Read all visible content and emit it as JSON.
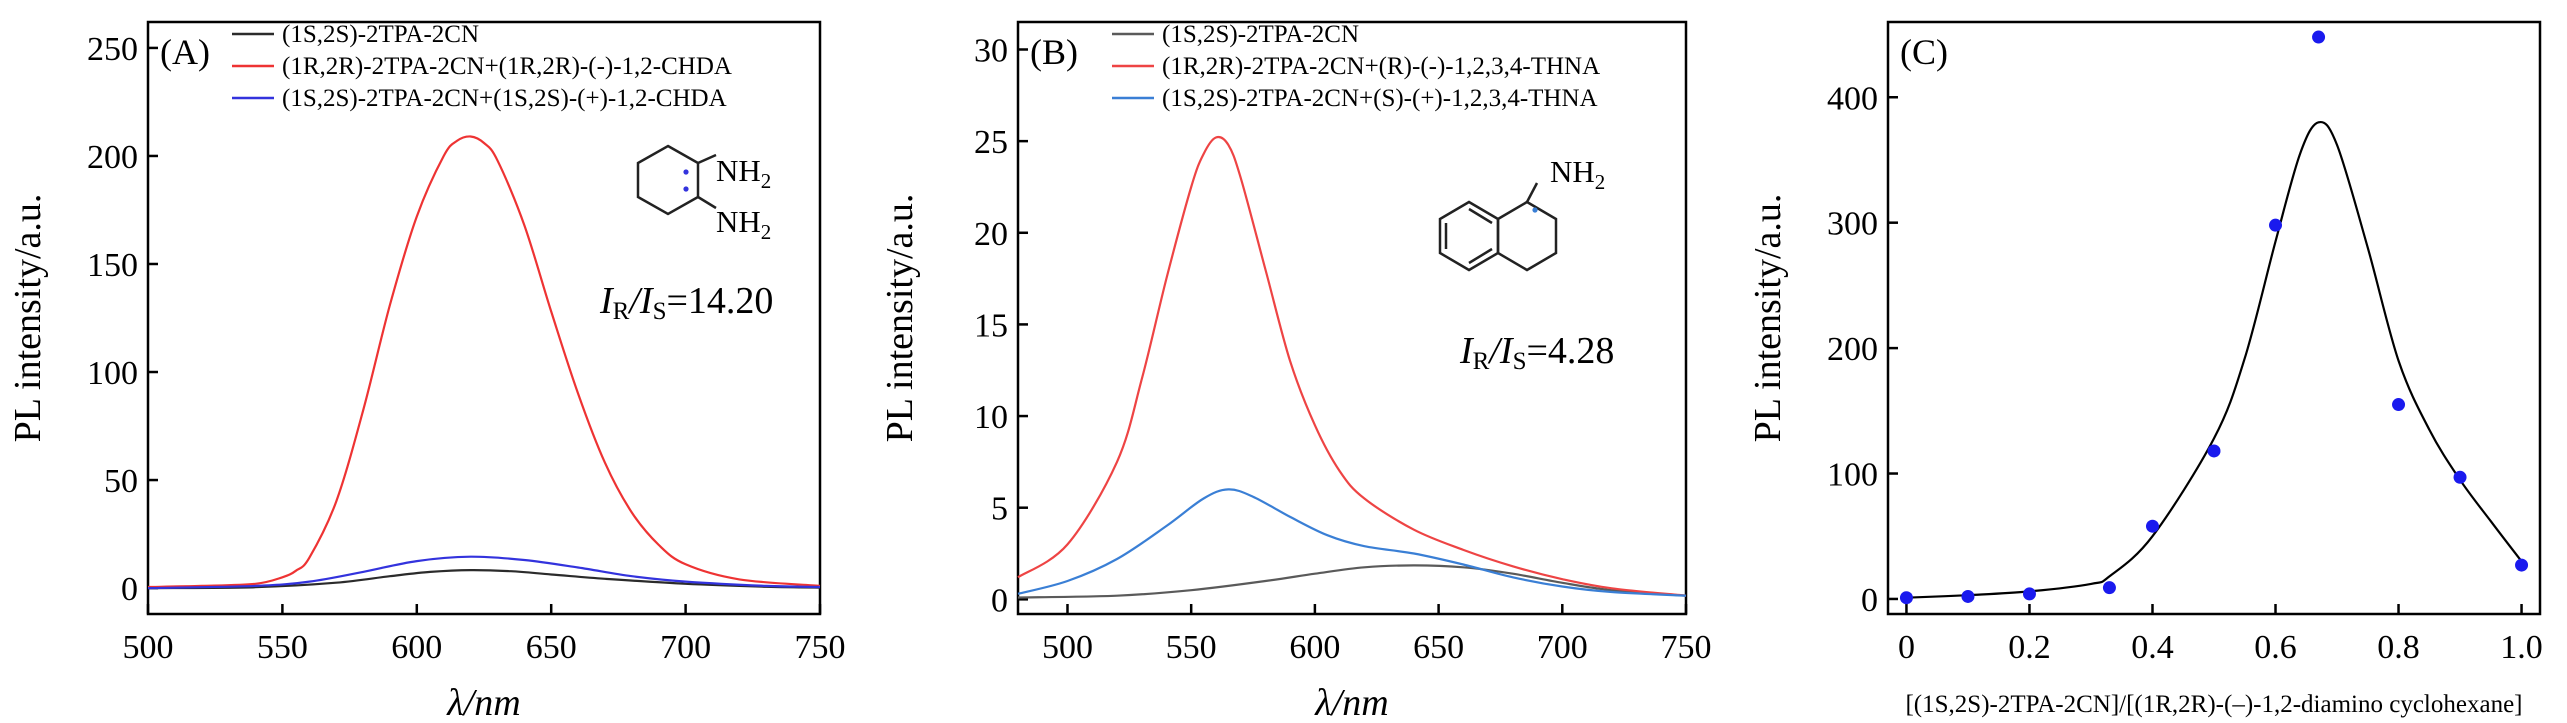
{
  "chart_data": [
    {
      "type": "line",
      "panel": "(A)",
      "xlabel": "λ/nm",
      "ylabel": "PL intensity/a.u.",
      "xlim": [
        500,
        750
      ],
      "ylim": [
        -12,
        262
      ],
      "xticks": [
        500,
        550,
        600,
        650,
        700,
        750
      ],
      "yticks": [
        0,
        50,
        100,
        150,
        200,
        250
      ],
      "legend_position": "top-left",
      "series": [
        {
          "name": "(1S,2S)-2TPA-2CN",
          "color": "#2b2b2b",
          "x": [
            500,
            540,
            570,
            590,
            605,
            620,
            635,
            650,
            670,
            700,
            730,
            750
          ],
          "y": [
            0,
            0.4,
            2.5,
            5.5,
            7.5,
            8.3,
            7.8,
            6.3,
            4.3,
            2,
            0.6,
            0.2
          ]
        },
        {
          "name": "(1R,2R)-2TPA-2CN+(1R,2R)-(-)-1,2-CHDA",
          "color": "#ee3333",
          "x": [
            500,
            520,
            540,
            550,
            555,
            560,
            570,
            580,
            590,
            600,
            610,
            615,
            620,
            625,
            630,
            640,
            650,
            660,
            670,
            680,
            690,
            700,
            720,
            750
          ],
          "y": [
            0.5,
            1,
            2,
            5,
            8,
            14,
            40,
            82,
            131,
            172,
            200,
            207,
            209,
            206,
            198,
            168,
            128,
            90,
            58,
            35,
            20,
            11,
            4,
            1
          ]
        },
        {
          "name": "(1S,2S)-2TPA-2CN+(1S,2S)-(+)-1,2-CHDA",
          "color": "#3333dd",
          "x": [
            500,
            540,
            560,
            580,
            600,
            620,
            640,
            660,
            680,
            700,
            730,
            750
          ],
          "y": [
            0,
            1,
            3,
            7.5,
            12.5,
            14.5,
            13,
            9.5,
            5.5,
            3,
            1,
            0.5
          ]
        }
      ],
      "annotation": {
        "ratio_prefix": "I",
        "ratio_sub1": "R",
        "ratio_mid": "/I",
        "ratio_sub2": "S",
        "ratio_value": "=14.20"
      },
      "structure": {
        "groups": [
          "NH",
          "NH"
        ],
        "subscript": "2"
      }
    },
    {
      "type": "line",
      "panel": "(B)",
      "xlabel": "λ/nm",
      "ylabel": "PL intensity/a.u.",
      "xlim": [
        480,
        750
      ],
      "ylim": [
        -0.8,
        31.5
      ],
      "xticks": [
        500,
        550,
        600,
        650,
        700,
        750
      ],
      "yticks": [
        0,
        5,
        10,
        15,
        20,
        25,
        30
      ],
      "legend_position": "top-left",
      "series": [
        {
          "name": "(1S,2S)-2TPA-2CN",
          "color": "#5a5a5a",
          "x": [
            480,
            520,
            550,
            580,
            600,
            620,
            640,
            660,
            680,
            700,
            720,
            750
          ],
          "y": [
            0.1,
            0.2,
            0.5,
            1,
            1.4,
            1.75,
            1.85,
            1.75,
            1.4,
            0.9,
            0.5,
            0.2
          ]
        },
        {
          "name": "(1R,2R)-2TPA-2CN+(R)-(-)-1,2,3,4-THNA",
          "color": "#ee4444",
          "x": [
            480,
            500,
            520,
            530,
            540,
            550,
            555,
            560,
            565,
            570,
            580,
            590,
            600,
            610,
            620,
            640,
            660,
            680,
            700,
            720,
            750
          ],
          "y": [
            1.2,
            3,
            7.5,
            12,
            17.5,
            22.5,
            24.3,
            25.2,
            24.8,
            23,
            18,
            13,
            9.5,
            7,
            5.5,
            3.8,
            2.7,
            1.8,
            1.1,
            0.6,
            0.2
          ]
        },
        {
          "name": "(1S,2S)-2TPA-2CN+(S)-(+)-1,2,3,4-THNA",
          "color": "#3a7fd5",
          "x": [
            480,
            500,
            520,
            540,
            555,
            565,
            575,
            590,
            605,
            620,
            640,
            660,
            680,
            700,
            720,
            750
          ],
          "y": [
            0.3,
            1,
            2.2,
            4,
            5.5,
            6,
            5.6,
            4.5,
            3.5,
            2.9,
            2.5,
            1.9,
            1.2,
            0.7,
            0.4,
            0.2
          ]
        }
      ],
      "annotation": {
        "ratio_prefix": "I",
        "ratio_sub1": "R",
        "ratio_mid": "/I",
        "ratio_sub2": "S",
        "ratio_value": "=4.28"
      },
      "structure": {
        "groups": [
          "NH"
        ],
        "subscript": "2"
      }
    },
    {
      "type": "scatter",
      "panel": "(C)",
      "xlabel": "[(1S,2S)-2TPA-2CN]/[(1R,2R)-(–)-1,2-diamino cyclohexane]",
      "ylabel": "PL intensity/a.u.",
      "xlim": [
        -0.03,
        1.03
      ],
      "ylim": [
        -12,
        460
      ],
      "xticks": [
        0,
        0.2,
        0.4,
        0.6,
        0.8,
        1.0
      ],
      "xticklabels": [
        "0",
        "0.2",
        "0.4",
        "0.6",
        "0.8",
        "1.0"
      ],
      "yticks": [
        0,
        100,
        200,
        300,
        400
      ],
      "points": {
        "color": "#1a1aee",
        "x": [
          0,
          0.1,
          0.2,
          0.33,
          0.4,
          0.5,
          0.6,
          0.67,
          0.8,
          0.9,
          1.0
        ],
        "y": [
          1,
          2,
          4,
          9,
          58,
          118,
          298,
          448,
          155,
          97,
          27
        ]
      },
      "fit": {
        "color": "#000000",
        "x": [
          0,
          0.1,
          0.2,
          0.3,
          0.33,
          0.4,
          0.5,
          0.55,
          0.6,
          0.64,
          0.67,
          0.7,
          0.75,
          0.8,
          0.85,
          0.9,
          0.95,
          1.0
        ],
        "y": [
          1,
          3,
          6,
          12,
          18,
          50,
          128,
          192,
          285,
          355,
          380,
          362,
          280,
          190,
          135,
          95,
          62,
          30
        ]
      }
    }
  ]
}
